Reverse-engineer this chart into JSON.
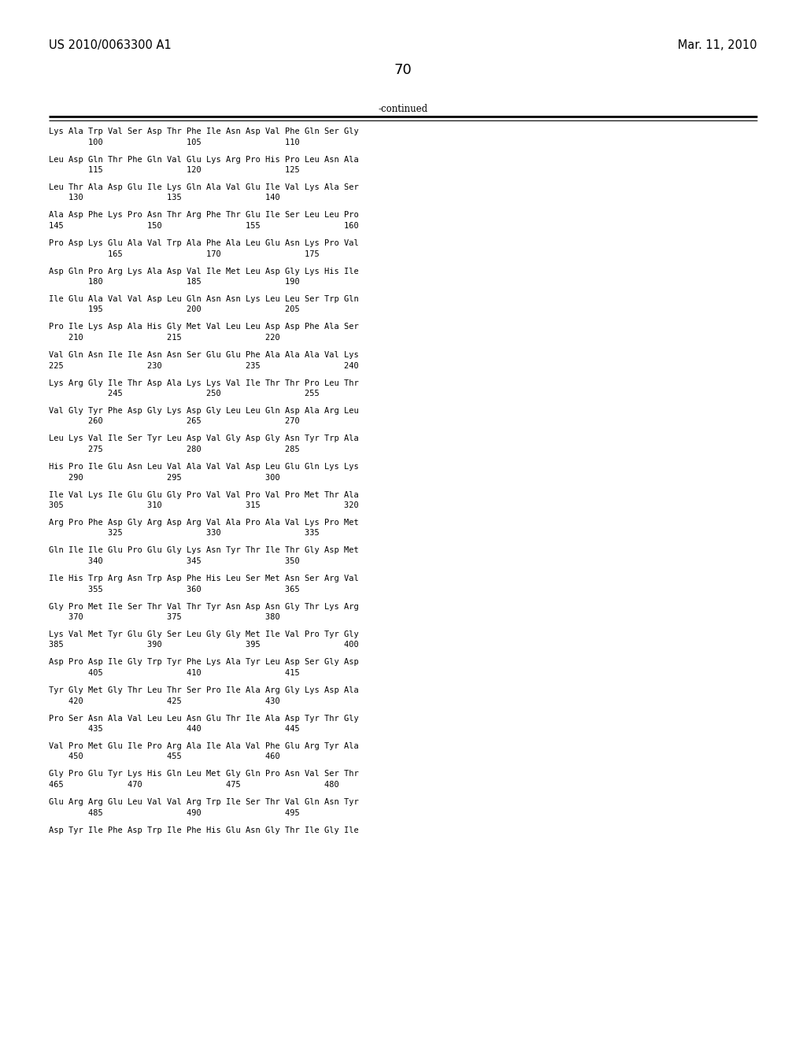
{
  "header_left": "US 2010/0063300 A1",
  "header_right": "Mar. 11, 2010",
  "page_number": "70",
  "continued_label": "-continued",
  "background_color": "#ffffff",
  "text_color": "#000000",
  "font_size": 7.5,
  "header_font_size": 10.5,
  "page_num_font_size": 13,
  "sequence_lines": [
    [
      "Lys Ala Trp Val Ser Asp Thr Phe Ile Asn Asp Val Phe Gln Ser Gly",
      false
    ],
    [
      "        100                 105                 110",
      true
    ],
    [
      "",
      false
    ],
    [
      "Leu Asp Gln Thr Phe Gln Val Glu Lys Arg Pro His Pro Leu Asn Ala",
      false
    ],
    [
      "        115                 120                 125",
      true
    ],
    [
      "",
      false
    ],
    [
      "Leu Thr Ala Asp Glu Ile Lys Gln Ala Val Glu Ile Val Lys Ala Ser",
      false
    ],
    [
      "    130                 135                 140",
      true
    ],
    [
      "",
      false
    ],
    [
      "Ala Asp Phe Lys Pro Asn Thr Arg Phe Thr Glu Ile Ser Leu Leu Pro",
      false
    ],
    [
      "145                 150                 155                 160",
      true
    ],
    [
      "",
      false
    ],
    [
      "Pro Asp Lys Glu Ala Val Trp Ala Phe Ala Leu Glu Asn Lys Pro Val",
      false
    ],
    [
      "            165                 170                 175",
      true
    ],
    [
      "",
      false
    ],
    [
      "Asp Gln Pro Arg Lys Ala Asp Val Ile Met Leu Asp Gly Lys His Ile",
      false
    ],
    [
      "        180                 185                 190",
      true
    ],
    [
      "",
      false
    ],
    [
      "Ile Glu Ala Val Val Asp Leu Gln Asn Asn Lys Leu Leu Ser Trp Gln",
      false
    ],
    [
      "        195                 200                 205",
      true
    ],
    [
      "",
      false
    ],
    [
      "Pro Ile Lys Asp Ala His Gly Met Val Leu Leu Asp Asp Phe Ala Ser",
      false
    ],
    [
      "    210                 215                 220",
      true
    ],
    [
      "",
      false
    ],
    [
      "Val Gln Asn Ile Ile Asn Asn Ser Glu Glu Phe Ala Ala Ala Val Lys",
      false
    ],
    [
      "225                 230                 235                 240",
      true
    ],
    [
      "",
      false
    ],
    [
      "Lys Arg Gly Ile Thr Asp Ala Lys Lys Val Ile Thr Thr Pro Leu Thr",
      false
    ],
    [
      "            245                 250                 255",
      true
    ],
    [
      "",
      false
    ],
    [
      "Val Gly Tyr Phe Asp Gly Lys Asp Gly Leu Leu Gln Asp Ala Arg Leu",
      false
    ],
    [
      "        260                 265                 270",
      true
    ],
    [
      "",
      false
    ],
    [
      "Leu Lys Val Ile Ser Tyr Leu Asp Val Gly Asp Gly Asn Tyr Trp Ala",
      false
    ],
    [
      "        275                 280                 285",
      true
    ],
    [
      "",
      false
    ],
    [
      "His Pro Ile Glu Asn Leu Val Ala Val Val Asp Leu Glu Gln Lys Lys",
      false
    ],
    [
      "    290                 295                 300",
      true
    ],
    [
      "",
      false
    ],
    [
      "Ile Val Lys Ile Glu Glu Gly Pro Val Val Pro Val Pro Met Thr Ala",
      false
    ],
    [
      "305                 310                 315                 320",
      true
    ],
    [
      "",
      false
    ],
    [
      "Arg Pro Phe Asp Gly Arg Asp Arg Val Ala Pro Ala Val Lys Pro Met",
      false
    ],
    [
      "            325                 330                 335",
      true
    ],
    [
      "",
      false
    ],
    [
      "Gln Ile Ile Glu Pro Glu Gly Lys Asn Tyr Thr Ile Thr Gly Asp Met",
      false
    ],
    [
      "        340                 345                 350",
      true
    ],
    [
      "",
      false
    ],
    [
      "Ile His Trp Arg Asn Trp Asp Phe His Leu Ser Met Asn Ser Arg Val",
      false
    ],
    [
      "        355                 360                 365",
      true
    ],
    [
      "",
      false
    ],
    [
      "Gly Pro Met Ile Ser Thr Val Thr Tyr Asn Asp Asn Gly Thr Lys Arg",
      false
    ],
    [
      "    370                 375                 380",
      true
    ],
    [
      "",
      false
    ],
    [
      "Lys Val Met Tyr Glu Gly Ser Leu Gly Gly Met Ile Val Pro Tyr Gly",
      false
    ],
    [
      "385                 390                 395                 400",
      true
    ],
    [
      "",
      false
    ],
    [
      "Asp Pro Asp Ile Gly Trp Tyr Phe Lys Ala Tyr Leu Asp Ser Gly Asp",
      false
    ],
    [
      "        405                 410                 415",
      true
    ],
    [
      "",
      false
    ],
    [
      "Tyr Gly Met Gly Thr Leu Thr Ser Pro Ile Ala Arg Gly Lys Asp Ala",
      false
    ],
    [
      "    420                 425                 430",
      true
    ],
    [
      "",
      false
    ],
    [
      "Pro Ser Asn Ala Val Leu Leu Asn Glu Thr Ile Ala Asp Tyr Thr Gly",
      false
    ],
    [
      "        435                 440                 445",
      true
    ],
    [
      "",
      false
    ],
    [
      "Val Pro Met Glu Ile Pro Arg Ala Ile Ala Val Phe Glu Arg Tyr Ala",
      false
    ],
    [
      "    450                 455                 460",
      true
    ],
    [
      "",
      false
    ],
    [
      "Gly Pro Glu Tyr Lys His Gln Leu Met Gly Gln Pro Asn Val Ser Thr",
      false
    ],
    [
      "465             470                 475                 480",
      true
    ],
    [
      "",
      false
    ],
    [
      "Glu Arg Arg Glu Leu Val Val Arg Trp Ile Ser Thr Val Gln Asn Tyr",
      false
    ],
    [
      "        485                 490                 495",
      true
    ],
    [
      "",
      false
    ],
    [
      "Asp Tyr Ile Phe Asp Trp Ile Phe His Glu Asn Gly Thr Ile Gly Ile",
      false
    ]
  ]
}
